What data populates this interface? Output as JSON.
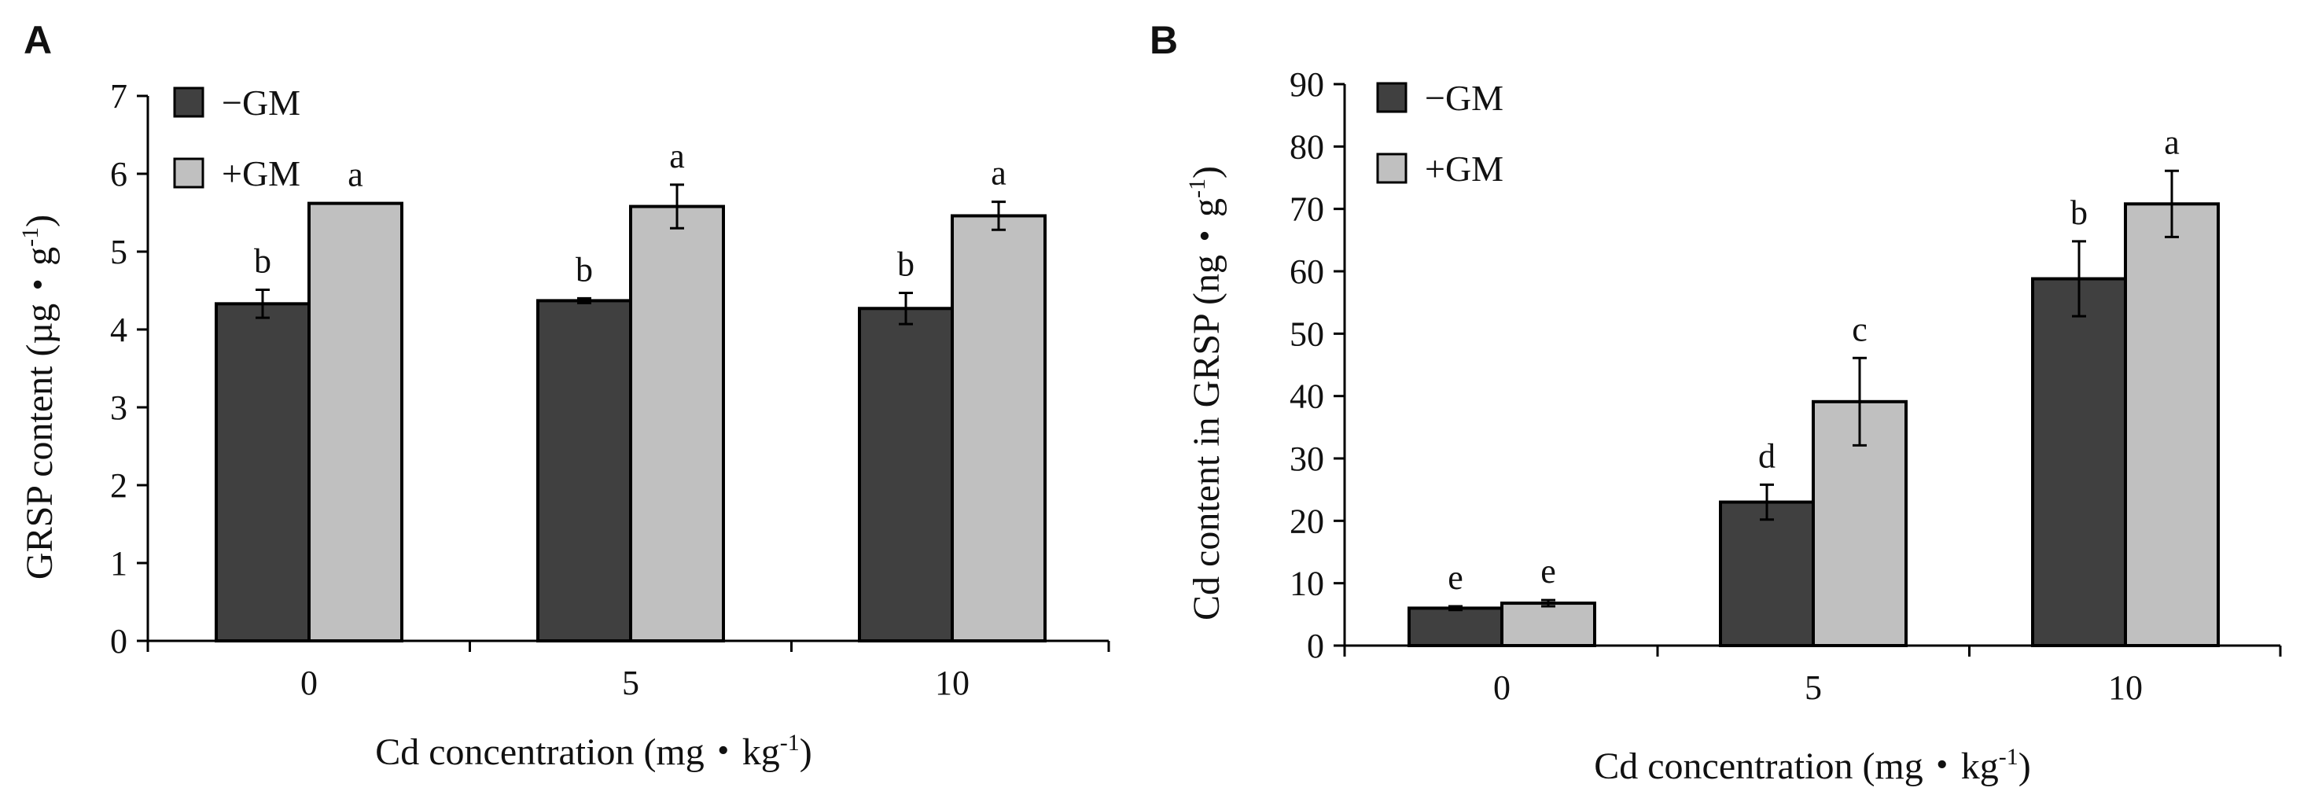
{
  "chart_data": [
    {
      "panel": "A",
      "type": "bar",
      "title": "",
      "categories": [
        "0",
        "5",
        "10"
      ],
      "xlabel": "Cd concentration (mg・kg",
      "xlabel_sup": "-1",
      "xlabel_end": ")",
      "ylabel": "GRSP content (µg・g",
      "ylabel_sup": "-1",
      "ylabel_end": ")",
      "ylim": [
        0,
        7
      ],
      "yticks": [
        0,
        1,
        2,
        3,
        4,
        5,
        6,
        7
      ],
      "legend_position": "top-left",
      "series": [
        {
          "name": "−GM",
          "color": "#404040",
          "values": [
            4.33,
            4.37,
            4.27
          ],
          "errors": [
            0.18,
            0.03,
            0.2
          ],
          "letters": [
            "b",
            "b",
            "b"
          ]
        },
        {
          "name": "+GM",
          "color": "#c0c0c0",
          "values": [
            5.62,
            5.58,
            5.46
          ],
          "errors": [
            0.0,
            0.28,
            0.18
          ],
          "letters": [
            "a",
            "a",
            "a"
          ]
        }
      ]
    },
    {
      "panel": "B",
      "type": "bar",
      "title": "",
      "categories": [
        "0",
        "5",
        "10"
      ],
      "xlabel": "Cd concentration (mg・kg",
      "xlabel_sup": "-1",
      "xlabel_end": ")",
      "ylabel": "Cd content in GRSP (ng・g",
      "ylabel_sup": "-1",
      "ylabel_end": ")",
      "ylim": [
        0,
        90
      ],
      "yticks": [
        0,
        10,
        20,
        30,
        40,
        50,
        60,
        70,
        80,
        90
      ],
      "legend_position": "top-left",
      "series": [
        {
          "name": "−GM",
          "color": "#404040",
          "values": [
            6.0,
            23.0,
            58.8
          ],
          "errors": [
            0.3,
            2.8,
            6.0
          ],
          "letters": [
            "e",
            "d",
            "b"
          ]
        },
        {
          "name": "+GM",
          "color": "#c0c0c0",
          "values": [
            6.8,
            39.1,
            70.8
          ],
          "errors": [
            0.5,
            7.0,
            5.3
          ],
          "letters": [
            "e",
            "c",
            "a"
          ]
        }
      ]
    }
  ]
}
